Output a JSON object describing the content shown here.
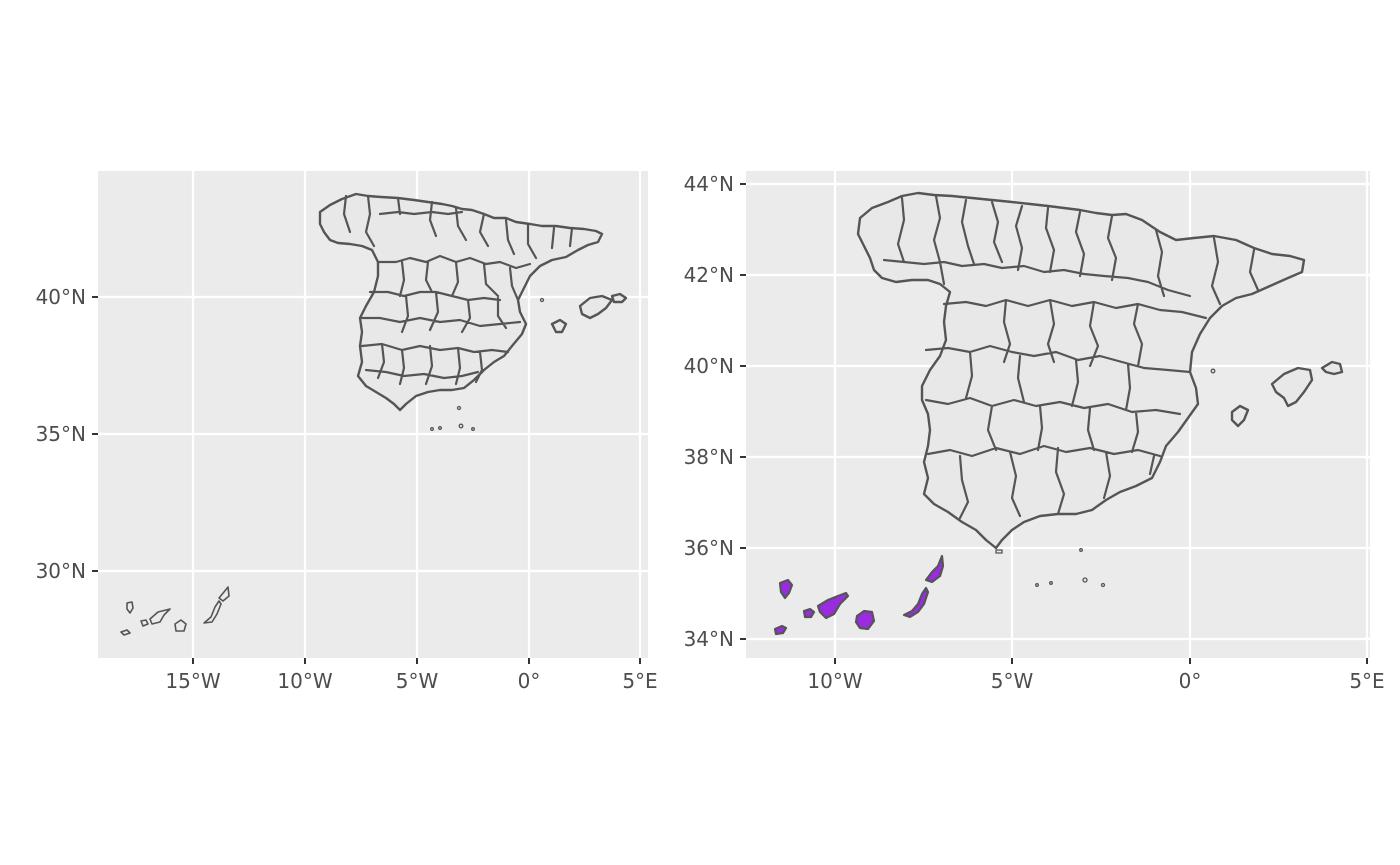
{
  "colors": {
    "panel_background": "#ebebeb",
    "grid": "#ffffff",
    "land_fill": "#e8e8e8",
    "border": "#555555",
    "highlight_fill": "#9a2be0",
    "tick_label": "#4d4d4d"
  },
  "panels": [
    {
      "name": "spain-full-extent",
      "x_ticks": [
        "15°W",
        "10°W",
        "5°W",
        "0°",
        "5°E"
      ],
      "y_ticks": [
        "40°N",
        "35°N",
        "30°N"
      ],
      "canary_islands_highlighted": false
    },
    {
      "name": "spain-canaries-inset",
      "x_ticks": [
        "10°W",
        "5°W",
        "0°",
        "5°E"
      ],
      "y_ticks": [
        "44°N",
        "42°N",
        "40°N",
        "38°N",
        "36°N",
        "34°N"
      ],
      "canary_islands_highlighted": true
    }
  ]
}
